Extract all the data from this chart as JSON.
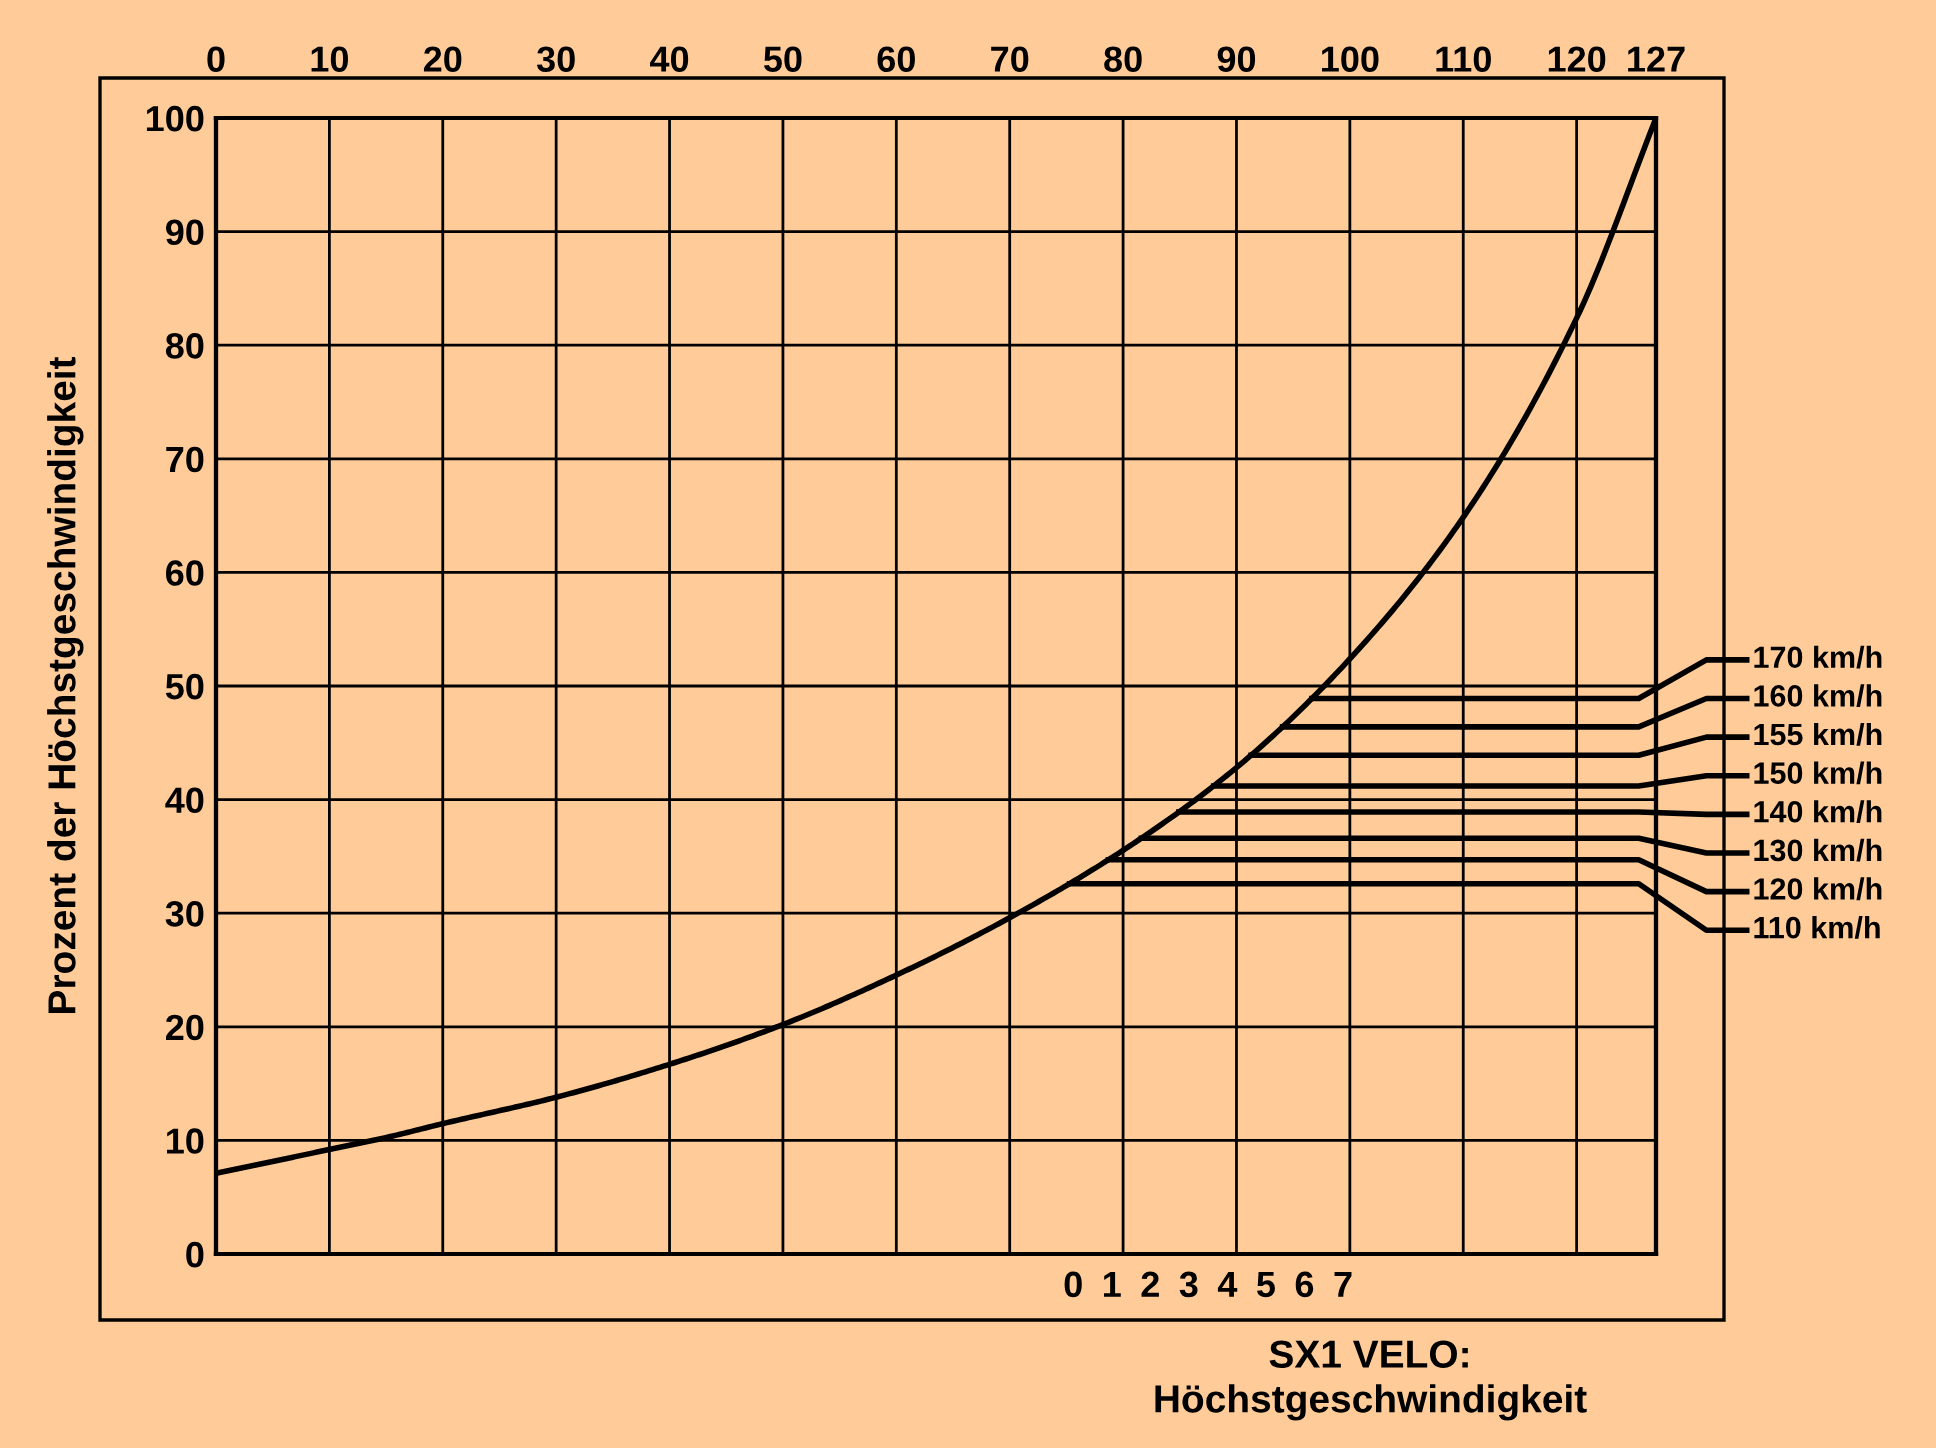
{
  "chart_data": {
    "type": "line",
    "x2label": "SX1 VELO:\nHöchstgeschwindigkeit",
    "ylabel": "Prozent der Höchstgeschwindigkeit",
    "series": [
      {
        "color": "#000000",
        "x": [
          0,
          10,
          15.2,
          20.1,
          30,
          40,
          50,
          60.1,
          70,
          80.1,
          90.1,
          100.1,
          110.1,
          120.1,
          127
        ],
        "values": [
          7.1,
          9.2,
          10.3,
          11.5,
          13.8,
          16.7,
          20.2,
          24.6,
          29.6,
          35.6,
          42.9,
          52.5,
          65,
          82.6,
          100
        ]
      }
    ],
    "xlim": [
      0,
      127
    ],
    "xticks": [
      0,
      10,
      20,
      30,
      40,
      50,
      60,
      70,
      80,
      90,
      100,
      110,
      120,
      127
    ],
    "x2lim": [
      -22.24,
      15.12
    ],
    "x2ticks": [
      0,
      1,
      2,
      3,
      4,
      5,
      6,
      7
    ],
    "ylim": [
      0,
      100
    ],
    "yticks": [
      0,
      10,
      20,
      30,
      40,
      50,
      60,
      70,
      80,
      90,
      100
    ],
    "grid": true,
    "marker": "none",
    "line_style": "solid",
    "ref_lines": [
      {
        "axis": "y",
        "value": 48.9,
        "label": "170 km/h",
        "color": "#000000"
      },
      {
        "axis": "y",
        "value": 46.4,
        "label": "160 km/h",
        "color": "#000000"
      },
      {
        "axis": "y",
        "value": 43.9,
        "label": "155 km/h",
        "color": "#000000"
      },
      {
        "axis": "y",
        "value": 41.2,
        "label": "150 km/h",
        "color": "#000000"
      },
      {
        "axis": "y",
        "value": 38.9,
        "label": "140 km/h",
        "color": "#000000"
      },
      {
        "axis": "y",
        "value": 36.6,
        "label": "130 km/h",
        "color": "#000000"
      },
      {
        "axis": "y",
        "value": 34.7,
        "label": "120 km/h",
        "color": "#000000"
      },
      {
        "axis": "y",
        "value": 32.6,
        "label": "110 km/h",
        "color": "#000000"
      }
    ]
  }
}
